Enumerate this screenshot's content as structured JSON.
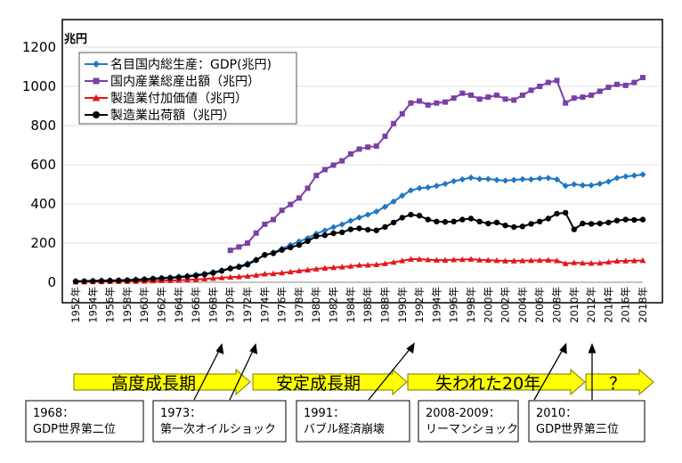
{
  "chart_data": {
    "type": "line",
    "ylabel": "兆円",
    "ylim": [
      0,
      1200
    ],
    "yticks": [
      0,
      200,
      400,
      600,
      800,
      1000,
      1200
    ],
    "x_years": [
      1952,
      1953,
      1954,
      1955,
      1956,
      1957,
      1958,
      1959,
      1960,
      1961,
      1962,
      1963,
      1964,
      1965,
      1966,
      1967,
      1968,
      1969,
      1970,
      1971,
      1972,
      1973,
      1974,
      1975,
      1976,
      1977,
      1978,
      1979,
      1980,
      1981,
      1982,
      1983,
      1984,
      1985,
      1986,
      1987,
      1988,
      1989,
      1990,
      1991,
      1992,
      1993,
      1994,
      1995,
      1996,
      1997,
      1998,
      1999,
      2000,
      2001,
      2002,
      2003,
      2004,
      2005,
      2006,
      2007,
      2008,
      2009,
      2010,
      2011,
      2012,
      2013,
      2014,
      2015,
      2016,
      2017,
      2018
    ],
    "x_tick_labels": [
      "1952年",
      "1954年",
      "1956年",
      "1958年",
      "1960年",
      "1962年",
      "1964年",
      "1966年",
      "1968年",
      "1970年",
      "1972年",
      "1974年",
      "1976年",
      "1978年",
      "1980年",
      "1982年",
      "1984年",
      "1986年",
      "1988年",
      "1990年",
      "1992年",
      "1994年",
      "1996年",
      "1998年",
      "2000年",
      "2002年",
      "2004年",
      "2006年",
      "2008年",
      "2010年",
      "2012年",
      "2014年",
      "2016年",
      "2018年"
    ],
    "legend_position": "top-left",
    "series": [
      {
        "name": "名目国内総生産：GDP(兆円)",
        "color": "#1f77c4",
        "marker": "diamond",
        "start_year": 1952,
        "values": [
          6,
          7,
          8,
          9,
          10,
          11,
          12,
          14,
          16,
          19,
          22,
          25,
          29,
          33,
          38,
          44,
          52,
          61,
          73,
          82,
          96,
          116,
          138,
          152,
          171,
          190,
          208,
          225,
          248,
          264,
          281,
          295,
          314,
          330,
          345,
          361,
          385,
          412,
          442,
          469,
          480,
          484,
          492,
          502,
          516,
          525,
          534,
          527,
          527,
          522,
          519,
          522,
          526,
          525,
          530,
          532,
          525,
          492,
          500,
          495,
          495,
          503,
          514,
          532,
          540,
          545,
          550
        ]
      },
      {
        "name": "国内産業総産出額（兆円）",
        "color": "#7b3fa6",
        "marker": "square",
        "start_year": 1970,
        "values": [
          163,
          180,
          200,
          251,
          296,
          320,
          367,
          397,
          430,
          480,
          545,
          575,
          598,
          620,
          655,
          680,
          690,
          695,
          745,
          810,
          860,
          915,
          925,
          905,
          915,
          920,
          940,
          965,
          955,
          935,
          945,
          955,
          935,
          930,
          955,
          980,
          1000,
          1020,
          1030,
          915,
          940,
          945,
          955,
          975,
          995,
          1010,
          1005,
          1020,
          1045
        ]
      },
      {
        "name": "製造業付加価値（兆円）",
        "color": "#e8141c",
        "marker": "triangle",
        "start_year": 1952,
        "values": [
          2,
          2,
          3,
          3,
          4,
          4,
          5,
          5,
          6,
          7,
          8,
          9,
          10,
          12,
          14,
          17,
          20,
          23,
          26,
          28,
          31,
          36,
          42,
          44,
          48,
          53,
          58,
          63,
          68,
          72,
          75,
          78,
          82,
          87,
          88,
          90,
          95,
          102,
          110,
          118,
          118,
          115,
          113,
          113,
          115,
          116,
          118,
          114,
          113,
          111,
          109,
          109,
          110,
          111,
          112,
          113,
          110,
          95,
          100,
          98,
          97,
          98,
          103,
          108,
          109,
          110,
          111
        ]
      },
      {
        "name": "製造業出荷額（兆円）",
        "color": "#000000",
        "marker": "circle",
        "start_year": 1952,
        "values": [
          4,
          5,
          6,
          7,
          8,
          9,
          10,
          12,
          15,
          18,
          20,
          22,
          25,
          29,
          34,
          40,
          48,
          58,
          70,
          78,
          90,
          113,
          140,
          148,
          165,
          178,
          190,
          210,
          235,
          240,
          250,
          255,
          270,
          275,
          268,
          265,
          282,
          305,
          330,
          345,
          340,
          320,
          310,
          308,
          310,
          320,
          325,
          310,
          300,
          305,
          290,
          282,
          285,
          298,
          310,
          325,
          350,
          355,
          270,
          300,
          298,
          300,
          305,
          315,
          320,
          318,
          320
        ]
      }
    ],
    "phases": [
      {
        "label": "高度成長期"
      },
      {
        "label": "安定成長期"
      },
      {
        "label": "失われた20年"
      },
      {
        "label": "？"
      }
    ],
    "annotations": [
      {
        "year_label": "1968：",
        "event": "GDP世界第二位"
      },
      {
        "year_label": "1973：",
        "event": "第一次オイルショック"
      },
      {
        "year_label": "1991：",
        "event": "バブル経済崩壊"
      },
      {
        "year_label": "2008-2009：",
        "event": "リーマンショック"
      },
      {
        "year_label": "2010：",
        "event": "GDP世界第三位"
      }
    ],
    "colors": {
      "phase_arrow_fill": "#ffff00",
      "phase_arrow_stroke": "#7a7a00",
      "arrow_color": "#000000"
    }
  }
}
